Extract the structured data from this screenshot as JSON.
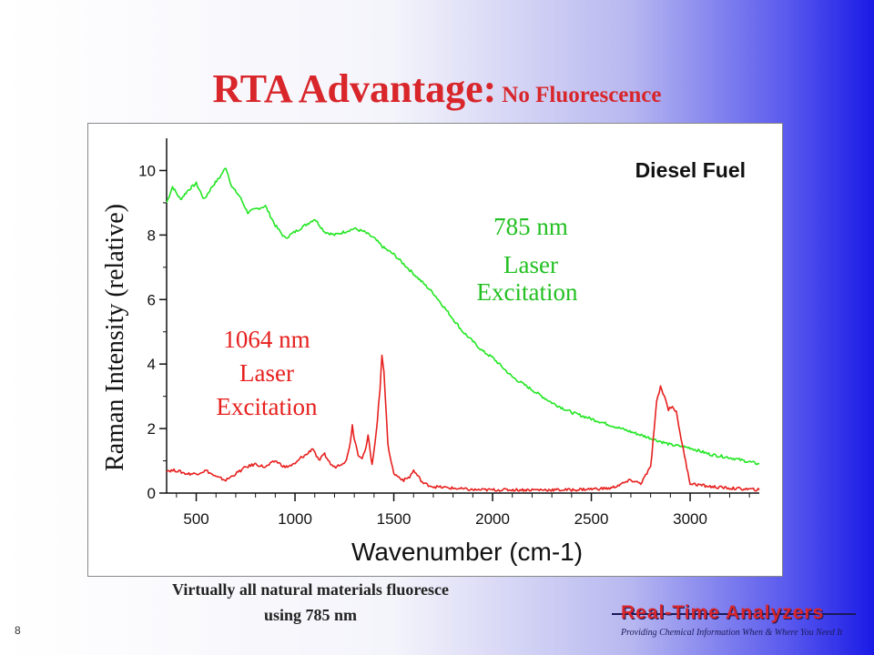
{
  "slide": {
    "title_main": "RTA Advantage:",
    "title_sub": "No Fluorescence",
    "caption_line1": "Virtually all natural materials fluoresce",
    "caption_line2": "using 785 nm",
    "slide_number": "8",
    "logo_name": "Real-Time Analyzers",
    "logo_tagline": "Providing Chemical Information When & Where You Need It",
    "logo_icon": "spectrum-peak-logo",
    "colors": {
      "title": "#d8262b",
      "green_series": "#22e622",
      "red_series": "#e6201e"
    }
  },
  "chart_data": {
    "type": "line",
    "xlabel": "Wavenumber (cm-1)",
    "ylabel": "Raman Intensity (relative)",
    "xlim": [
      350,
      3350
    ],
    "ylim": [
      0,
      11
    ],
    "xticks": [
      500,
      1000,
      1500,
      2000,
      2500,
      3000
    ],
    "yticks": [
      0,
      2,
      4,
      6,
      8,
      10
    ],
    "grid": false,
    "legend": "none",
    "annotations": [
      {
        "text": "Diesel Fuel"
      },
      {
        "text": "785 nm"
      },
      {
        "text": "Laser"
      },
      {
        "text": "Excitation"
      },
      {
        "text": "1064 nm"
      },
      {
        "text": "Laser"
      },
      {
        "text": "Excitation"
      }
    ],
    "series": [
      {
        "color": "#22e622",
        "x": [
          350,
          380,
          420,
          460,
          500,
          540,
          580,
          620,
          650,
          680,
          720,
          760,
          800,
          850,
          900,
          950,
          1000,
          1050,
          1100,
          1150,
          1200,
          1250,
          1300,
          1350,
          1400,
          1450,
          1500,
          1550,
          1600,
          1650,
          1700,
          1750,
          1800,
          1850,
          1900,
          1950,
          2000,
          2050,
          2100,
          2150,
          2200,
          2300,
          2400,
          2500,
          2600,
          2700,
          2800,
          2900,
          3000,
          3100,
          3200,
          3350
        ],
        "y": [
          9.0,
          9.5,
          9.1,
          9.4,
          9.6,
          9.1,
          9.5,
          9.8,
          10.1,
          9.5,
          9.2,
          8.7,
          8.8,
          8.9,
          8.3,
          7.9,
          8.1,
          8.3,
          8.5,
          8.1,
          8.0,
          8.1,
          8.2,
          8.1,
          7.9,
          7.6,
          7.4,
          7.1,
          6.8,
          6.5,
          6.2,
          5.8,
          5.4,
          5.0,
          4.7,
          4.4,
          4.2,
          3.9,
          3.6,
          3.4,
          3.2,
          2.8,
          2.5,
          2.3,
          2.1,
          1.9,
          1.7,
          1.5,
          1.4,
          1.2,
          1.1,
          0.9
        ]
      },
      {
        "color": "#e6201e",
        "x": [
          350,
          400,
          450,
          500,
          550,
          600,
          650,
          700,
          750,
          800,
          850,
          900,
          950,
          1000,
          1030,
          1060,
          1090,
          1120,
          1150,
          1180,
          1200,
          1230,
          1260,
          1280,
          1290,
          1300,
          1320,
          1340,
          1360,
          1370,
          1380,
          1390,
          1410,
          1430,
          1440,
          1450,
          1470,
          1500,
          1550,
          1580,
          1600,
          1650,
          1700,
          1800,
          1900,
          2000,
          2200,
          2400,
          2600,
          2700,
          2750,
          2800,
          2830,
          2850,
          2870,
          2890,
          2910,
          2930,
          2960,
          3000,
          3100,
          3200,
          3350
        ],
        "y": [
          0.7,
          0.7,
          0.6,
          0.6,
          0.7,
          0.5,
          0.4,
          0.6,
          0.8,
          0.9,
          0.8,
          1.0,
          0.8,
          0.9,
          1.1,
          1.2,
          1.4,
          1.0,
          1.2,
          0.9,
          0.8,
          0.9,
          1.0,
          1.6,
          2.1,
          1.7,
          1.2,
          1.1,
          1.4,
          1.8,
          1.3,
          0.9,
          1.8,
          3.2,
          4.3,
          3.8,
          1.5,
          0.6,
          0.4,
          0.5,
          0.7,
          0.3,
          0.2,
          0.15,
          0.1,
          0.1,
          0.1,
          0.1,
          0.15,
          0.4,
          0.3,
          0.8,
          2.8,
          3.3,
          3.0,
          2.6,
          2.7,
          2.5,
          1.5,
          0.3,
          0.2,
          0.15,
          0.1
        ]
      }
    ]
  }
}
